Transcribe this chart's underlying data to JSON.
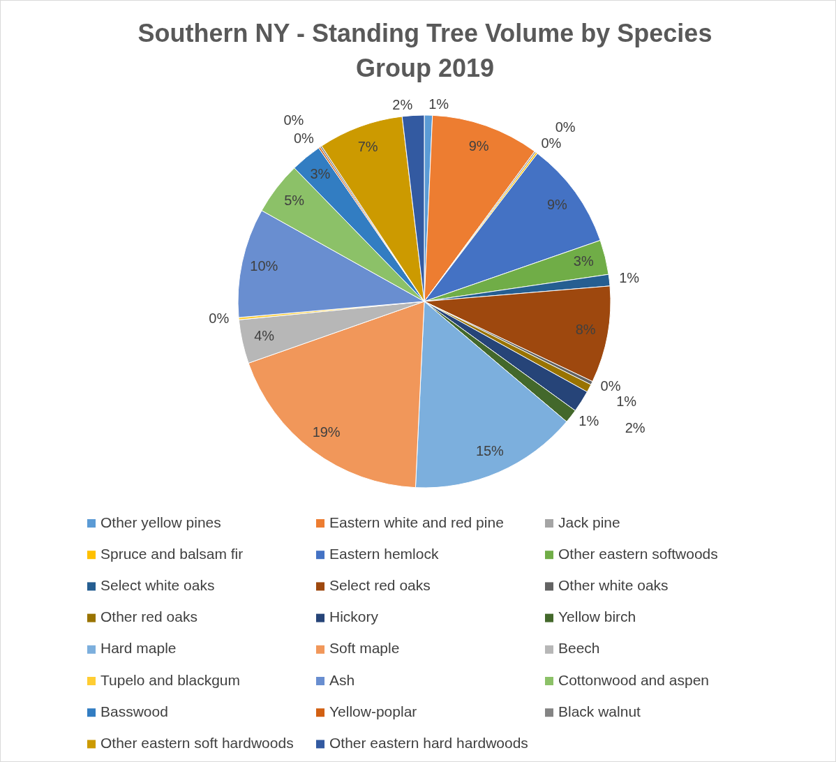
{
  "chart_data": {
    "type": "pie",
    "title": "Southern NY - Standing Tree Volume by Species Group 2019",
    "categories": [
      "Other yellow pines",
      "Eastern white and red pine",
      "Jack pine",
      "Spruce and balsam fir",
      "Eastern hemlock",
      "Other eastern softwoods",
      "Select white oaks",
      "Select red oaks",
      "Other white oaks",
      "Other red oaks",
      "Hickory",
      "Yellow birch",
      "Hard maple",
      "Soft maple",
      "Beech",
      "Tupelo and blackgum",
      "Ash",
      "Cottonwood and aspen",
      "Basswood",
      "Yellow-poplar",
      "Black walnut",
      "Other eastern soft hardwoods",
      "Other eastern hard hardwoods"
    ],
    "values": [
      0.7,
      9.4,
      0.15,
      0.15,
      9.3,
      3.0,
      1.0,
      8.4,
      0.3,
      0.7,
      1.9,
      1.2,
      14.6,
      18.9,
      3.8,
      0.2,
      9.5,
      4.6,
      2.7,
      0.15,
      0.15,
      7.4,
      1.9
    ],
    "value_labels": [
      "1%",
      "9%",
      "0%",
      "0%",
      "9%",
      "3%",
      "1%",
      "8%",
      "0%",
      "1%",
      "2%",
      "1%",
      "15%",
      "19%",
      "4%",
      "0%",
      "10%",
      "5%",
      "3%",
      "0%",
      "0%",
      "7%",
      "2%"
    ],
    "colors": [
      "#5b9bd5",
      "#ed7d31",
      "#a5a5a5",
      "#ffc000",
      "#4472c4",
      "#70ad47",
      "#255e91",
      "#9e480e",
      "#636363",
      "#997300",
      "#264478",
      "#43682b",
      "#7cafdd",
      "#f1975a",
      "#b7b7b7",
      "#ffcd33",
      "#698ed0",
      "#8cc168",
      "#327dc2",
      "#d26012",
      "#848484",
      "#cc9a00",
      "#335aa1"
    ],
    "legend": "bottom"
  }
}
